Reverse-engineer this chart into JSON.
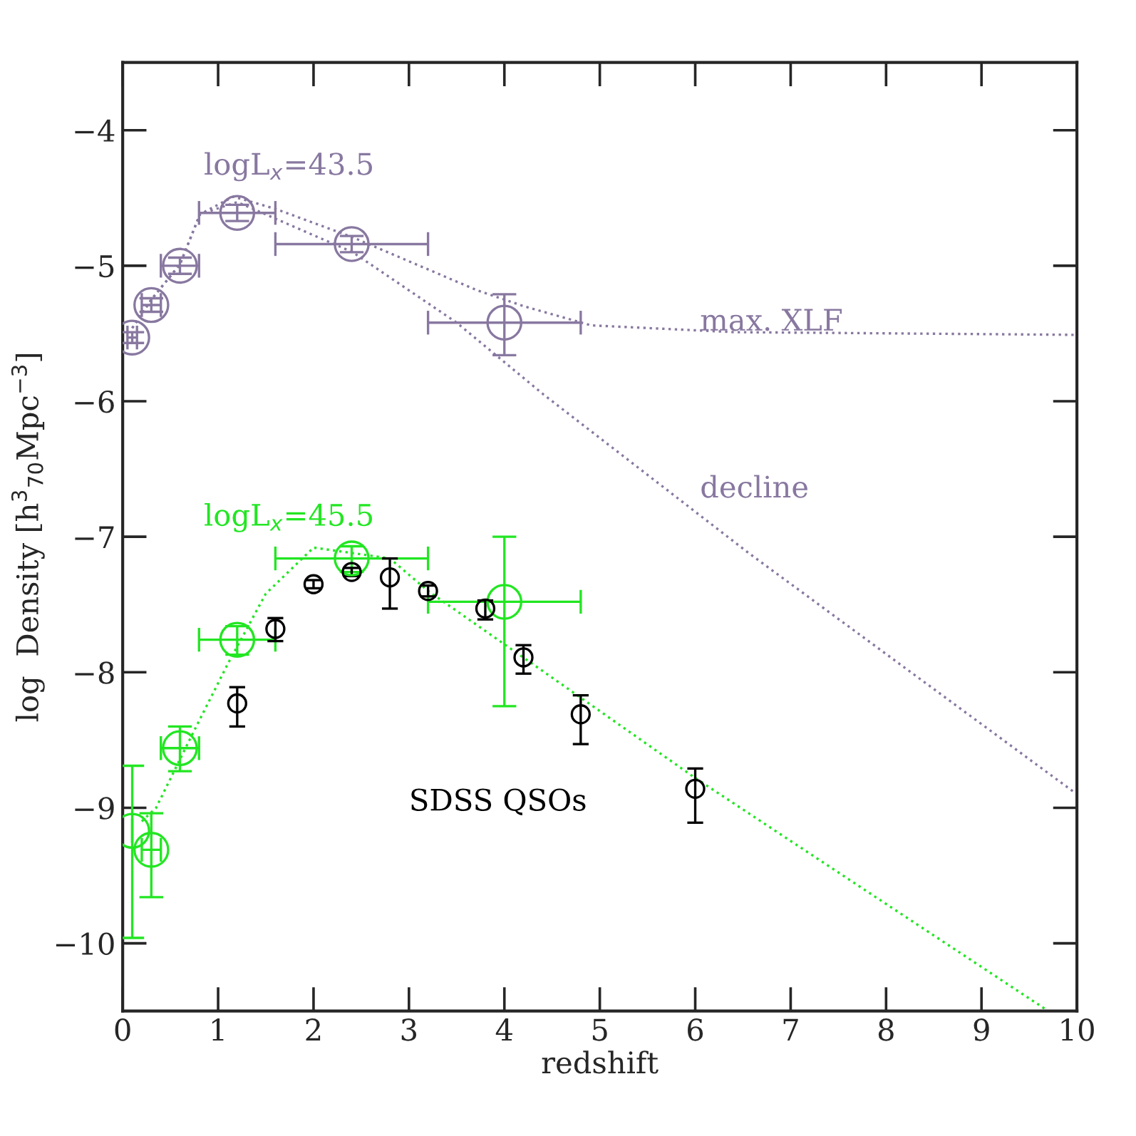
{
  "chart_data": {
    "type": "scatter",
    "xlabel": "redshift",
    "ylabel": "log  Density [h$^{3}$$_{70}$Mpc$^{−3}$]",
    "xlim": [
      0,
      10
    ],
    "ylim": [
      -10.5,
      -3.5
    ],
    "xticks": [
      0,
      1,
      2,
      3,
      4,
      5,
      6,
      7,
      8,
      9,
      10
    ],
    "yticks": [
      {
        "value": -10,
        "label": "−10"
      },
      {
        "value": -9,
        "label": "−9"
      },
      {
        "value": -8,
        "label": "−8"
      },
      {
        "value": -7,
        "label": "−7"
      },
      {
        "value": -6,
        "label": "−6"
      },
      {
        "value": -5,
        "label": "−5"
      },
      {
        "value": -4,
        "label": "−4"
      }
    ],
    "grid": false,
    "legend": false,
    "series": [
      {
        "type": "line",
        "color": "#8878a0",
        "line_style": "dotted",
        "marker": "none",
        "x": [
          0.1,
          0.3,
          0.6,
          0.81,
          1.16,
          1.6,
          2.41,
          3.71,
          4.21,
          4.91,
          6.41,
          10
        ],
        "values": [
          -5.46,
          -5.25,
          -4.99,
          -4.62,
          -4.49,
          -4.58,
          -4.79,
          -5.18,
          -5.3,
          -5.44,
          -5.49,
          -5.51
        ]
      },
      {
        "type": "line",
        "color": "#8878a0",
        "line_style": "dotted",
        "marker": "none",
        "x": [
          0.1,
          0.3,
          0.6,
          0.81,
          1.2,
          2.41,
          3.5,
          4.41,
          6.56,
          10
        ],
        "values": [
          -5.46,
          -5.25,
          -4.99,
          -4.62,
          -4.53,
          -4.9,
          -5.42,
          -5.95,
          -7.12,
          -8.9
        ]
      },
      {
        "type": "line",
        "color": "#22e622",
        "line_style": "dotted",
        "marker": "none",
        "x": [
          0.2,
          0.35,
          0.7,
          1.1,
          1.5,
          2.0,
          2.8,
          3.2,
          4.4,
          6.0,
          9.7
        ],
        "values": [
          -9.1,
          -9.0,
          -8.5,
          -7.94,
          -7.42,
          -7.08,
          -7.16,
          -7.4,
          -7.99,
          -8.78,
          -10.5
        ]
      },
      {
        "color": "#8878a0",
        "marker": "circle",
        "x": [
          0.1,
          0.3,
          0.6,
          1.2,
          2.4,
          4.0
        ],
        "values": [
          -5.53,
          -5.29,
          -5.0,
          -4.61,
          -4.84,
          -5.42
        ],
        "errors": [
          0.04,
          0.05,
          0.06,
          0.06,
          0.06,
          [
            -5.66,
            -5.21
          ]
        ],
        "xerrors": [
          0.05,
          0.1,
          0.2,
          0.4,
          0.8,
          0.8
        ]
      },
      {
        "color": "#22e622",
        "marker": "circle",
        "x": [
          0.1,
          0.3,
          0.6,
          1.2,
          2.4,
          4.0
        ],
        "values": [
          -9.17,
          -9.31,
          -8.56,
          -7.76,
          -7.16,
          -7.48
        ],
        "errors": [
          [
            -9.96,
            -8.69
          ],
          [
            -9.66,
            -9.04
          ],
          [
            -8.73,
            -8.4
          ],
          [
            -7.87,
            -7.66
          ],
          [
            -7.26,
            -7.07
          ],
          [
            -8.25,
            -7.0
          ]
        ],
        "xerrors": [
          null,
          0.1,
          0.2,
          0.4,
          0.8,
          0.8
        ]
      },
      {
        "color": "#000000",
        "marker": "circle",
        "x": [
          1.2,
          1.6,
          2.0,
          2.4,
          2.8,
          3.2,
          3.8,
          4.2,
          4.8,
          6.0
        ],
        "values": [
          -8.23,
          -7.68,
          -7.35,
          -7.26,
          -7.3,
          -7.4,
          -7.53,
          -7.89,
          -8.31,
          -8.86
        ],
        "errors": [
          [
            -8.4,
            -8.11
          ],
          [
            -7.77,
            -7.6
          ],
          0.03,
          0.03,
          [
            -7.53,
            -7.16
          ],
          0.04,
          [
            -7.61,
            -7.47
          ],
          [
            -8.01,
            -7.8
          ],
          [
            -8.53,
            -8.17
          ],
          [
            -9.11,
            -8.71
          ]
        ]
      }
    ],
    "annotations": [
      "logL$_{x}$=43.5",
      "max. XLF",
      "decline",
      "logL$_{x}$=45.5",
      "SDSS QSOs"
    ]
  }
}
